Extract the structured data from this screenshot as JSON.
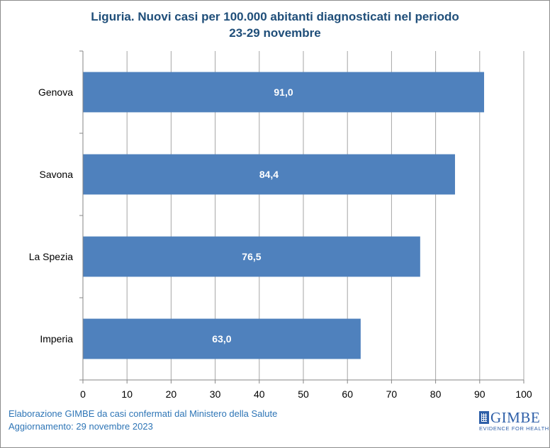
{
  "chart_data": {
    "type": "bar",
    "orientation": "horizontal",
    "title": "Liguria. Nuovi casi per 100.000 abitanti diagnosticati nel periodo",
    "subtitle": "23-29 novembre",
    "categories": [
      "Genova",
      "Savona",
      "La Spezia",
      "Imperia"
    ],
    "values": [
      91.0,
      84.4,
      76.5,
      63.0
    ],
    "data_labels": [
      "91,0",
      "84,4",
      "76,5",
      "63,0"
    ],
    "xlim": [
      0,
      100
    ],
    "x_ticks": [
      0,
      10,
      20,
      30,
      40,
      50,
      60,
      70,
      80,
      90,
      100
    ],
    "grid": "vertical",
    "legend": "none",
    "bar_color": "#4f81bd",
    "label_color": "#ffffff"
  },
  "footer": {
    "line1": "Elaborazione GIMBE da casi confermati dal Ministero della Salute",
    "line2": "Aggiornamento: 29 novembre 2023"
  },
  "logo": {
    "name": "GIMBE",
    "tagline": "EVIDENCE FOR HEALTH"
  }
}
